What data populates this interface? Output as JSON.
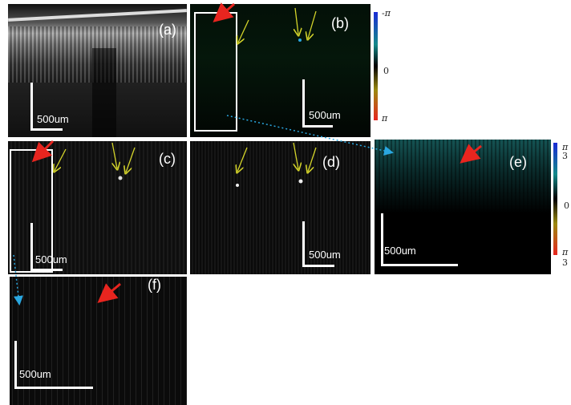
{
  "panels": {
    "a": {
      "label": "(a)",
      "scale": "500um"
    },
    "b": {
      "label": "(b)",
      "scale": "500um"
    },
    "c": {
      "label": "(c)",
      "scale": "500um"
    },
    "d": {
      "label": "(d)",
      "scale": "500um"
    },
    "e": {
      "label": "(e)",
      "scale": "500um"
    },
    "f": {
      "label": "(f)",
      "scale": "500um"
    }
  },
  "colorbar_b": {
    "top": "-π",
    "mid": "0",
    "bottom": "π"
  },
  "colorbar_e": {
    "top": "π",
    "top_denominator": "3",
    "mid": "0",
    "bottom": "π",
    "bottom_denominator": "3"
  },
  "colors": {
    "arrow_red": "#e8251f",
    "arrow_yellow": "#d4d42a",
    "connector_blue": "#2aa7e0",
    "colorbar": [
      "#1a2bd6",
      "#138a8a",
      "#000000",
      "#9a8a10",
      "#e8251f"
    ]
  }
}
